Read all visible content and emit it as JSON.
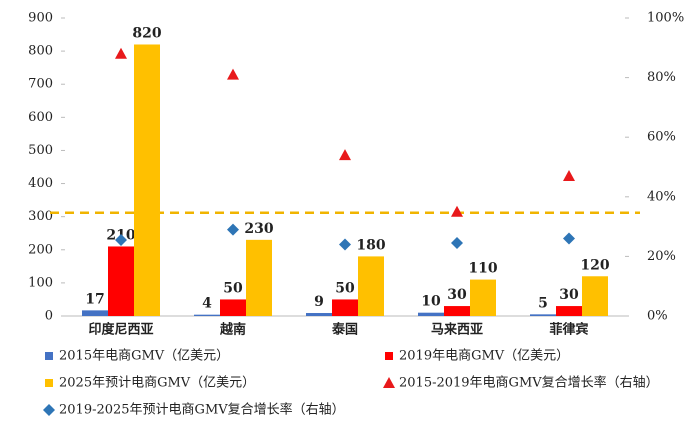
{
  "chart_data": {
    "type": "bar",
    "categories": [
      "印度尼西亚",
      "越南",
      "泰国",
      "马来西亚",
      "菲律宾"
    ],
    "series": [
      {
        "name": "2015年电商GMV（亿美元）",
        "color": "#4472c4",
        "values": [
          17,
          4,
          9,
          10,
          5
        ]
      },
      {
        "name": "2019年电商GMV（亿美元）",
        "color": "#ff0000",
        "values": [
          210,
          50,
          50,
          30,
          30
        ]
      },
      {
        "name": "2025年预计电商GMV（亿美元）",
        "color": "#ffc000",
        "values": [
          820,
          230,
          180,
          110,
          120
        ]
      },
      {
        "name": "2015-2019年电商GMV复合增长率（右轴）",
        "color": "#e8191b",
        "axis": "y2",
        "marker": "triangle",
        "values": [
          88,
          81,
          54,
          35,
          47
        ]
      },
      {
        "name": "2019-2025年预计电商GMV复合增长率（右轴）",
        "color": "#2e75b6",
        "axis": "y2",
        "marker": "diamond",
        "values": [
          25.5,
          29,
          24,
          24.5,
          26
        ]
      }
    ],
    "ylim": [
      0,
      900
    ],
    "yticks": [
      0,
      100,
      200,
      300,
      400,
      500,
      600,
      700,
      800,
      900
    ],
    "y2lim": [
      0,
      100
    ],
    "y2ticks": [
      {
        "value": 0,
        "label": "0%"
      },
      {
        "value": 20,
        "label": "20%"
      },
      {
        "value": 40,
        "label": "40%"
      },
      {
        "value": 60,
        "label": "60%"
      },
      {
        "value": 80,
        "label": "80%"
      },
      {
        "value": 100,
        "label": "100%"
      }
    ],
    "hline": {
      "value": 312,
      "color": "#f0b400"
    },
    "grid": false
  }
}
